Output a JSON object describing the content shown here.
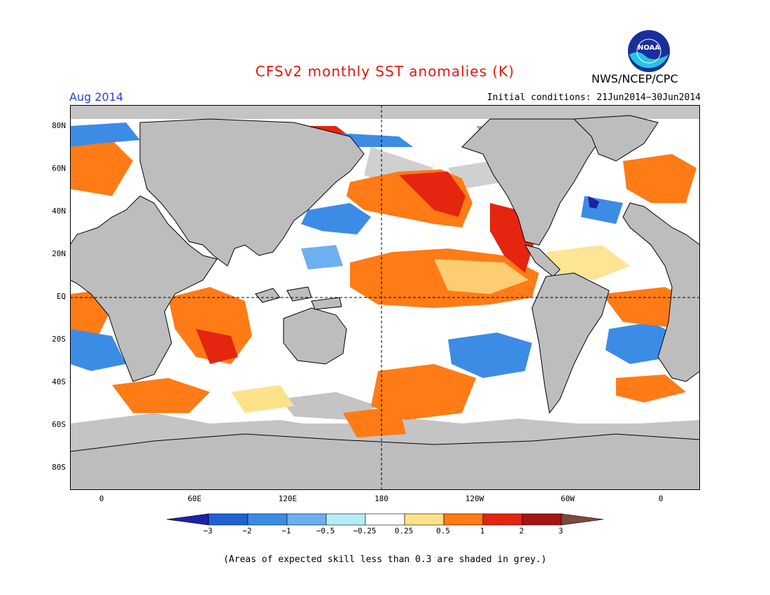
{
  "title": "CFSv2 monthly SST anomalies (K)",
  "agency": "NWS/NCEP/CPC",
  "logo_text": "NOAA",
  "period": "Aug 2014",
  "initial_conditions": "Initial conditions: 21Jun2014−30Jun2014",
  "lat_labels": [
    "80N",
    "60N",
    "40N",
    "20N",
    "EQ",
    "20S",
    "40S",
    "60S",
    "80S"
  ],
  "lon_labels": [
    "0",
    "60E",
    "120E",
    "180",
    "120W",
    "60W",
    "0"
  ],
  "colorbar": {
    "labels": [
      "−3",
      "−2",
      "−1",
      "−0.5",
      "−0.25",
      "0.25",
      "0.5",
      "1",
      "2",
      "3"
    ],
    "colors": [
      "#1f1fa8",
      "#1e62d2",
      "#3c8ce6",
      "#6cb0f2",
      "#b6ecf6",
      "#ffffff",
      "#fde28a",
      "#ff7b16",
      "#e4250f",
      "#a5150f",
      "#7b4a3a"
    ]
  },
  "colors": {
    "land": "#bdbdbd",
    "skill_grey": "#c4c4c4",
    "title": "#e8160c",
    "period": "#2a3fd6"
  },
  "footnote": "(Areas of expected skill less than 0.3 are shaded in grey.)"
}
